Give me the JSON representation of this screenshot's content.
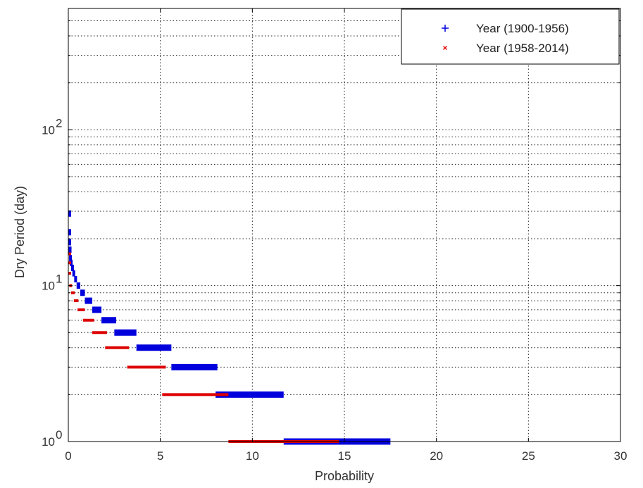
{
  "chart_data": {
    "type": "scatter",
    "xlabel": "Probability",
    "ylabel": "Dry Period (day)",
    "xlim": [
      0,
      30
    ],
    "ylim": [
      1,
      600
    ],
    "yscale": "log",
    "grid": true,
    "legend_position": "top-right",
    "x_ticks": [
      0,
      5,
      10,
      15,
      20,
      25,
      30
    ],
    "y_ticks": [
      {
        "value": 1,
        "base": "10",
        "exp": "0"
      },
      {
        "value": 10,
        "base": "10",
        "exp": "1"
      },
      {
        "value": 100,
        "base": "10",
        "exp": "2"
      }
    ],
    "series": [
      {
        "name": "Year (1900-1956)",
        "color": "#0000dd",
        "marker": "+",
        "segments": [
          {
            "y": 1,
            "x_start": 11.7,
            "x_end": 17.5
          },
          {
            "y": 2,
            "x_start": 8.0,
            "x_end": 11.7
          },
          {
            "y": 3,
            "x_start": 5.6,
            "x_end": 8.1
          },
          {
            "y": 4,
            "x_start": 3.7,
            "x_end": 5.6
          },
          {
            "y": 5,
            "x_start": 2.5,
            "x_end": 3.7
          },
          {
            "y": 6,
            "x_start": 1.8,
            "x_end": 2.6
          },
          {
            "y": 7,
            "x_start": 1.3,
            "x_end": 1.8
          },
          {
            "y": 8,
            "x_start": 0.9,
            "x_end": 1.3
          },
          {
            "y": 9,
            "x_start": 0.65,
            "x_end": 0.9
          },
          {
            "y": 10,
            "x_start": 0.45,
            "x_end": 0.65
          },
          {
            "y": 11,
            "x_start": 0.32,
            "x_end": 0.45
          },
          {
            "y": 12,
            "x_start": 0.22,
            "x_end": 0.32
          },
          {
            "y": 13,
            "x_start": 0.15,
            "x_end": 0.22
          },
          {
            "y": 14,
            "x_start": 0.08,
            "x_end": 0.15
          },
          {
            "y": 15,
            "x_start": 0.04,
            "x_end": 0.08
          },
          {
            "y": 17,
            "x_start": 0.02,
            "x_end": 0.05
          },
          {
            "y": 19,
            "x_start": 0.0,
            "x_end": 0.03
          },
          {
            "y": 22,
            "x_start": 0.0,
            "x_end": 0.02
          },
          {
            "y": 29,
            "x_start": 0.0,
            "x_end": 0.01
          }
        ]
      },
      {
        "name": "Year (1958-2014)",
        "color": "#dd0000",
        "marker": "x",
        "segments": [
          {
            "y": 1,
            "x_start": 8.7,
            "x_end": 14.7
          },
          {
            "y": 2,
            "x_start": 5.1,
            "x_end": 8.7
          },
          {
            "y": 3,
            "x_start": 3.2,
            "x_end": 5.3
          },
          {
            "y": 4,
            "x_start": 2.0,
            "x_end": 3.3
          },
          {
            "y": 5,
            "x_start": 1.3,
            "x_end": 2.1
          },
          {
            "y": 6,
            "x_start": 0.8,
            "x_end": 1.4
          },
          {
            "y": 7,
            "x_start": 0.5,
            "x_end": 0.9
          },
          {
            "y": 8,
            "x_start": 0.3,
            "x_end": 0.55
          },
          {
            "y": 9,
            "x_start": 0.15,
            "x_end": 0.35
          },
          {
            "y": 10,
            "x_start": 0.05,
            "x_end": 0.2
          },
          {
            "y": 12,
            "x_start": 0.0,
            "x_end": 0.1
          },
          {
            "y": 14,
            "x_start": 0.0,
            "x_end": 0.05
          },
          {
            "y": 16,
            "x_start": 0.0,
            "x_end": 0.03
          }
        ]
      }
    ]
  }
}
